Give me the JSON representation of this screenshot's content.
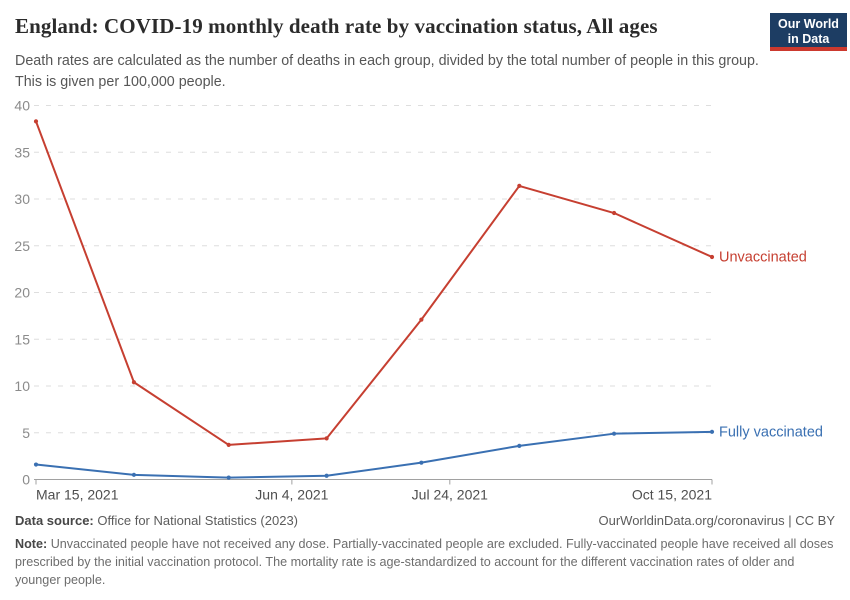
{
  "header": {
    "logo": {
      "line1": "Our World",
      "line2": "in Data",
      "bg_color": "#1d3d63",
      "bar_color": "#cc392e"
    }
  },
  "chart_data": {
    "type": "line",
    "title": "England: COVID-19 monthly death rate by vaccination status, All ages",
    "subtitle": "Death rates are calculated as the number of deaths in each group, divided by the total number of people in this group. This is given per 100,000 people.",
    "ylabel": "",
    "xlabel": "",
    "ylim": [
      0,
      40
    ],
    "yticks": [
      0,
      5,
      10,
      15,
      20,
      25,
      30,
      35,
      40
    ],
    "grid": true,
    "legend_position": "line-end-labels",
    "x_range_days": [
      0,
      214
    ],
    "x_ticks": [
      {
        "label": "Mar 15, 2021",
        "day": 0,
        "anchor": "start"
      },
      {
        "label": "Jun 4, 2021",
        "day": 81,
        "anchor": "middle"
      },
      {
        "label": "Jul 24, 2021",
        "day": 131,
        "anchor": "middle"
      },
      {
        "label": "Oct 15, 2021",
        "day": 214,
        "anchor": "end"
      }
    ],
    "series": [
      {
        "name": "Unvaccinated",
        "color": "#c63f31",
        "days": [
          0,
          31,
          61,
          92,
          122,
          153,
          183,
          214
        ],
        "values": [
          38.3,
          10.4,
          3.7,
          4.4,
          17.1,
          31.4,
          28.5,
          23.8
        ]
      },
      {
        "name": "Fully vaccinated",
        "color": "#3a70b2",
        "days": [
          0,
          31,
          61,
          92,
          122,
          153,
          183,
          214
        ],
        "values": [
          1.6,
          0.5,
          0.2,
          0.4,
          1.8,
          3.6,
          4.9,
          5.1
        ]
      }
    ],
    "theme": {
      "grid_color": "#dedede",
      "axis_color": "#a1a1a1",
      "y_label_color": "#8b8b8b",
      "x_label_color": "#4f4f4f"
    }
  },
  "footer": {
    "data_source_label": "Data source:",
    "data_source": "Office for National Statistics (2023)",
    "link": "OurWorldinData.org/coronavirus | CC BY",
    "note_label": "Note:",
    "note": "Unvaccinated people have not received any dose. Partially-vaccinated people are excluded. Fully-vaccinated people have received all doses prescribed by the initial vaccination protocol. The mortality rate is age-standardized to account for the different vaccination rates of older and younger people."
  }
}
